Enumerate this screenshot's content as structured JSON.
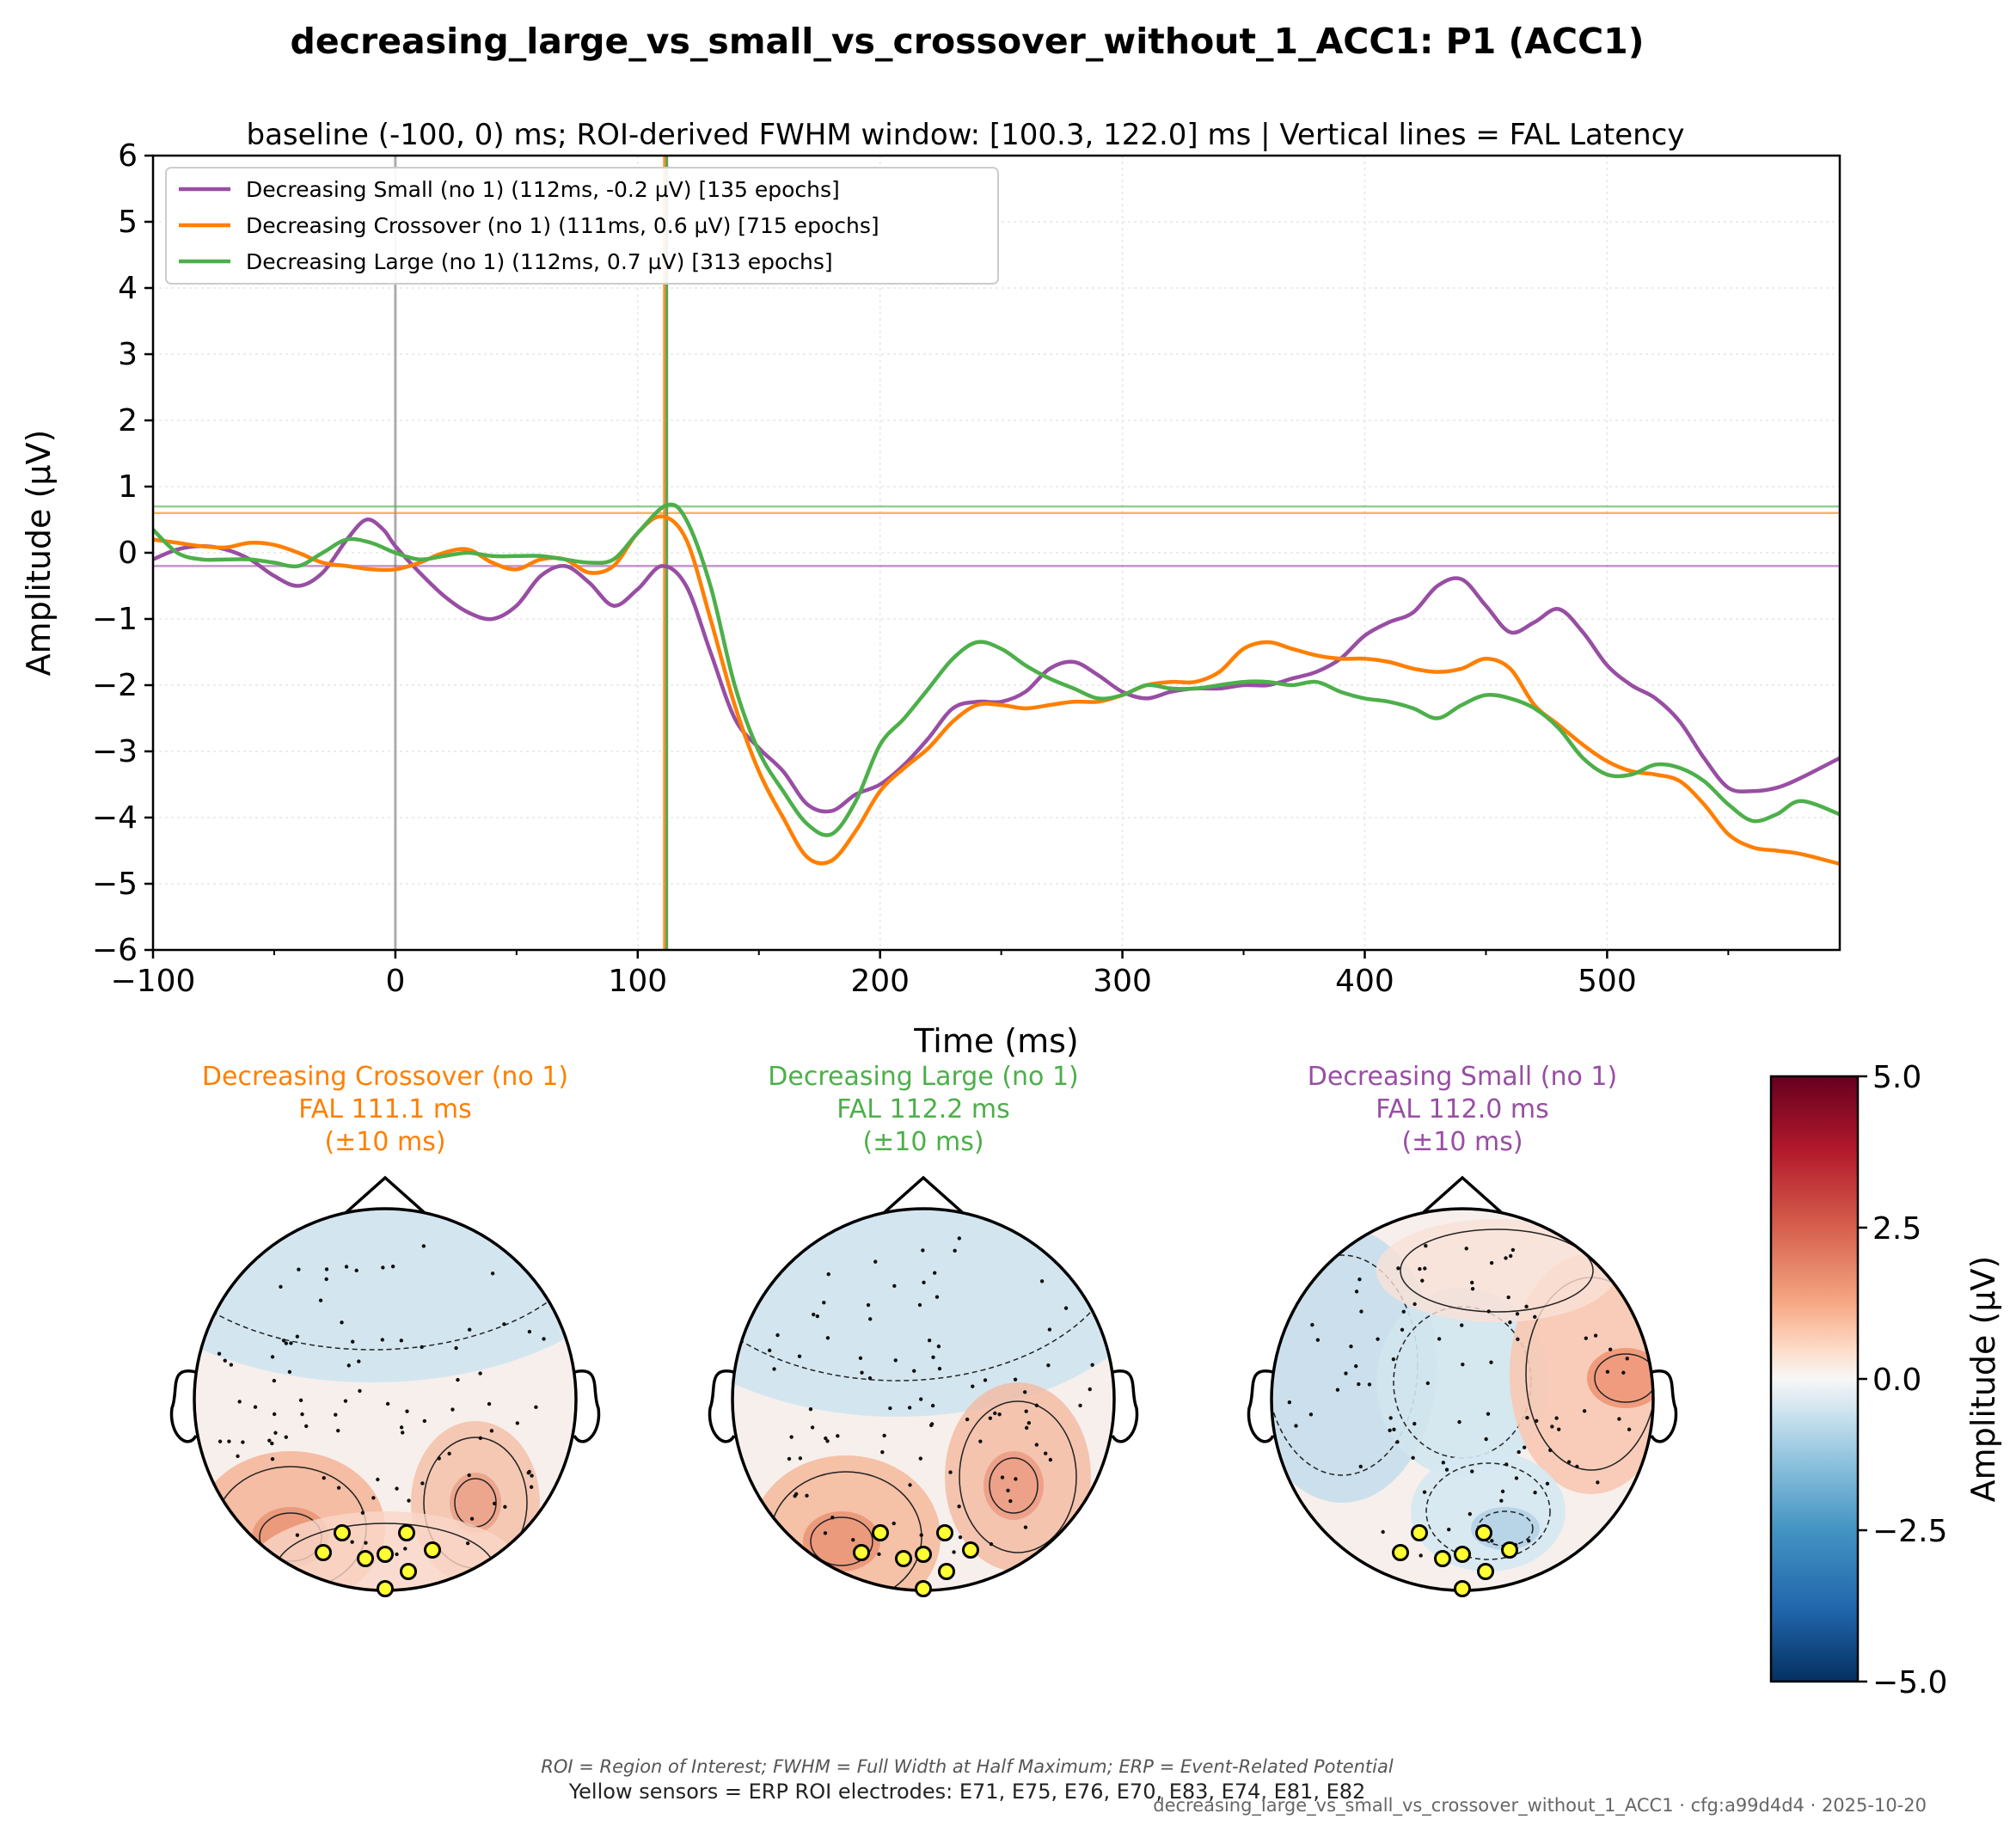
{
  "figure": {
    "title": "decreasing_large_vs_small_vs_crossover_without_1_ACC1: P1 (ACC1)",
    "subtitle": "baseline (-100, 0) ms; ROI-derived FWHM window: [100.3, 122.0] ms | Vertical lines = FAL Latency",
    "footer_abbrev": "ROI = Region of Interest; FWHM = Full Width at Half Maximum; ERP = Event-Related Potential",
    "footer_roi": "Yellow sensors = ERP ROI electrodes: E71, E75, E76, E70, E83, E74, E81, E82",
    "footer_id": "decreasing_large_vs_small_vs_crossover_without_1_ACC1 · cfg:a99d4d4 · 2025-10-20"
  },
  "chart_data": [
    {
      "type": "line",
      "xlabel": "Time (ms)",
      "ylabel": "Amplitude (µV)",
      "xlim": [
        -100,
        596
      ],
      "ylim": [
        -6,
        6
      ],
      "x_ticks": [
        -100,
        0,
        100,
        200,
        300,
        400,
        500
      ],
      "y_ticks": [
        -6,
        -5,
        -4,
        -3,
        -2,
        -1,
        0,
        1,
        2,
        3,
        4,
        5,
        6
      ],
      "grid": true,
      "legend_position": "upper-left",
      "reference_lines": {
        "onset_ms": 0,
        "fal_latency_ms": [
          112,
          111,
          112
        ],
        "peak_amplitude_uv": [
          -0.2,
          0.6,
          0.7
        ]
      },
      "series": [
        {
          "name": "Decreasing Small (no 1) (112ms, -0.2 µV) [135 epochs]",
          "color": "#984ea3",
          "fal_ms": 112,
          "peak_uv": -0.2,
          "points": [
            [
              -100,
              -0.1
            ],
            [
              -90,
              0.05
            ],
            [
              -80,
              0.1
            ],
            [
              -70,
              0.05
            ],
            [
              -60,
              -0.1
            ],
            [
              -50,
              -0.35
            ],
            [
              -40,
              -0.5
            ],
            [
              -30,
              -0.3
            ],
            [
              -20,
              0.2
            ],
            [
              -12,
              0.5
            ],
            [
              -5,
              0.35
            ],
            [
              0,
              0.1
            ],
            [
              10,
              -0.3
            ],
            [
              20,
              -0.65
            ],
            [
              30,
              -0.9
            ],
            [
              40,
              -1.0
            ],
            [
              50,
              -0.8
            ],
            [
              60,
              -0.35
            ],
            [
              70,
              -0.2
            ],
            [
              80,
              -0.45
            ],
            [
              90,
              -0.8
            ],
            [
              100,
              -0.55
            ],
            [
              110,
              -0.2
            ],
            [
              120,
              -0.5
            ],
            [
              130,
              -1.5
            ],
            [
              140,
              -2.5
            ],
            [
              150,
              -2.95
            ],
            [
              160,
              -3.3
            ],
            [
              170,
              -3.8
            ],
            [
              180,
              -3.9
            ],
            [
              190,
              -3.65
            ],
            [
              200,
              -3.5
            ],
            [
              210,
              -3.2
            ],
            [
              220,
              -2.8
            ],
            [
              230,
              -2.35
            ],
            [
              240,
              -2.25
            ],
            [
              250,
              -2.25
            ],
            [
              260,
              -2.1
            ],
            [
              270,
              -1.75
            ],
            [
              280,
              -1.65
            ],
            [
              290,
              -1.85
            ],
            [
              300,
              -2.1
            ],
            [
              310,
              -2.2
            ],
            [
              320,
              -2.1
            ],
            [
              330,
              -2.05
            ],
            [
              340,
              -2.05
            ],
            [
              350,
              -2.0
            ],
            [
              360,
              -2.0
            ],
            [
              370,
              -1.9
            ],
            [
              380,
              -1.8
            ],
            [
              390,
              -1.6
            ],
            [
              400,
              -1.25
            ],
            [
              410,
              -1.05
            ],
            [
              420,
              -0.9
            ],
            [
              430,
              -0.5
            ],
            [
              440,
              -0.4
            ],
            [
              450,
              -0.8
            ],
            [
              460,
              -1.2
            ],
            [
              470,
              -1.05
            ],
            [
              480,
              -0.85
            ],
            [
              490,
              -1.2
            ],
            [
              500,
              -1.7
            ],
            [
              510,
              -2.0
            ],
            [
              520,
              -2.2
            ],
            [
              530,
              -2.55
            ],
            [
              540,
              -3.1
            ],
            [
              550,
              -3.55
            ],
            [
              560,
              -3.6
            ],
            [
              570,
              -3.55
            ],
            [
              580,
              -3.4
            ],
            [
              596,
              -3.1
            ]
          ]
        },
        {
          "name": "Decreasing Crossover (no 1) (111ms, 0.6 µV) [715 epochs]",
          "color": "#ff7f00",
          "fal_ms": 111,
          "peak_uv": 0.6,
          "points": [
            [
              -100,
              0.2
            ],
            [
              -90,
              0.15
            ],
            [
              -80,
              0.1
            ],
            [
              -70,
              0.08
            ],
            [
              -60,
              0.15
            ],
            [
              -50,
              0.12
            ],
            [
              -40,
              0.0
            ],
            [
              -30,
              -0.15
            ],
            [
              -20,
              -0.2
            ],
            [
              -10,
              -0.25
            ],
            [
              0,
              -0.25
            ],
            [
              10,
              -0.15
            ],
            [
              20,
              0.0
            ],
            [
              30,
              0.05
            ],
            [
              40,
              -0.15
            ],
            [
              50,
              -0.25
            ],
            [
              60,
              -0.1
            ],
            [
              70,
              -0.1
            ],
            [
              80,
              -0.3
            ],
            [
              90,
              -0.2
            ],
            [
              100,
              0.3
            ],
            [
              110,
              0.55
            ],
            [
              120,
              0.2
            ],
            [
              130,
              -1.0
            ],
            [
              140,
              -2.3
            ],
            [
              150,
              -3.3
            ],
            [
              160,
              -4.0
            ],
            [
              170,
              -4.6
            ],
            [
              180,
              -4.65
            ],
            [
              190,
              -4.2
            ],
            [
              200,
              -3.6
            ],
            [
              210,
              -3.25
            ],
            [
              220,
              -2.95
            ],
            [
              230,
              -2.55
            ],
            [
              240,
              -2.3
            ],
            [
              250,
              -2.3
            ],
            [
              260,
              -2.35
            ],
            [
              270,
              -2.3
            ],
            [
              280,
              -2.25
            ],
            [
              290,
              -2.25
            ],
            [
              300,
              -2.15
            ],
            [
              310,
              -2.0
            ],
            [
              320,
              -1.95
            ],
            [
              330,
              -1.95
            ],
            [
              340,
              -1.8
            ],
            [
              350,
              -1.45
            ],
            [
              360,
              -1.35
            ],
            [
              370,
              -1.45
            ],
            [
              380,
              -1.55
            ],
            [
              390,
              -1.6
            ],
            [
              400,
              -1.6
            ],
            [
              410,
              -1.65
            ],
            [
              420,
              -1.75
            ],
            [
              430,
              -1.8
            ],
            [
              440,
              -1.75
            ],
            [
              450,
              -1.6
            ],
            [
              460,
              -1.75
            ],
            [
              470,
              -2.3
            ],
            [
              480,
              -2.6
            ],
            [
              490,
              -2.9
            ],
            [
              500,
              -3.15
            ],
            [
              510,
              -3.3
            ],
            [
              520,
              -3.35
            ],
            [
              530,
              -3.45
            ],
            [
              540,
              -3.8
            ],
            [
              550,
              -4.25
            ],
            [
              560,
              -4.45
            ],
            [
              570,
              -4.5
            ],
            [
              580,
              -4.55
            ],
            [
              596,
              -4.7
            ]
          ]
        },
        {
          "name": "Decreasing Large (no 1) (112ms, 0.7 µV) [313 epochs]",
          "color": "#4daf4a",
          "fal_ms": 112,
          "peak_uv": 0.7,
          "points": [
            [
              -100,
              0.35
            ],
            [
              -90,
              0.0
            ],
            [
              -80,
              -0.1
            ],
            [
              -70,
              -0.1
            ],
            [
              -60,
              -0.1
            ],
            [
              -50,
              -0.15
            ],
            [
              -40,
              -0.2
            ],
            [
              -30,
              0.0
            ],
            [
              -20,
              0.2
            ],
            [
              -10,
              0.15
            ],
            [
              0,
              0.0
            ],
            [
              10,
              -0.1
            ],
            [
              20,
              -0.05
            ],
            [
              30,
              0.0
            ],
            [
              40,
              -0.05
            ],
            [
              50,
              -0.05
            ],
            [
              60,
              -0.05
            ],
            [
              70,
              -0.1
            ],
            [
              80,
              -0.15
            ],
            [
              90,
              -0.1
            ],
            [
              100,
              0.3
            ],
            [
              112,
              0.72
            ],
            [
              120,
              0.5
            ],
            [
              130,
              -0.5
            ],
            [
              140,
              -2.0
            ],
            [
              150,
              -3.0
            ],
            [
              160,
              -3.6
            ],
            [
              170,
              -4.1
            ],
            [
              180,
              -4.25
            ],
            [
              190,
              -3.75
            ],
            [
              200,
              -2.9
            ],
            [
              210,
              -2.5
            ],
            [
              220,
              -2.05
            ],
            [
              230,
              -1.6
            ],
            [
              240,
              -1.35
            ],
            [
              250,
              -1.45
            ],
            [
              260,
              -1.7
            ],
            [
              270,
              -1.9
            ],
            [
              280,
              -2.05
            ],
            [
              290,
              -2.2
            ],
            [
              300,
              -2.15
            ],
            [
              310,
              -2.0
            ],
            [
              320,
              -2.05
            ],
            [
              330,
              -2.05
            ],
            [
              340,
              -2.0
            ],
            [
              350,
              -1.95
            ],
            [
              360,
              -1.95
            ],
            [
              370,
              -2.0
            ],
            [
              380,
              -1.95
            ],
            [
              390,
              -2.1
            ],
            [
              400,
              -2.2
            ],
            [
              410,
              -2.25
            ],
            [
              420,
              -2.35
            ],
            [
              430,
              -2.5
            ],
            [
              440,
              -2.3
            ],
            [
              450,
              -2.15
            ],
            [
              460,
              -2.2
            ],
            [
              470,
              -2.35
            ],
            [
              480,
              -2.65
            ],
            [
              490,
              -3.1
            ],
            [
              500,
              -3.35
            ],
            [
              510,
              -3.35
            ],
            [
              520,
              -3.2
            ],
            [
              530,
              -3.25
            ],
            [
              540,
              -3.45
            ],
            [
              550,
              -3.8
            ],
            [
              560,
              -4.05
            ],
            [
              570,
              -3.95
            ],
            [
              580,
              -3.75
            ],
            [
              596,
              -3.95
            ]
          ]
        }
      ]
    },
    {
      "type": "heatmap",
      "description_kind": "topomap",
      "panels": [
        {
          "title": "Decreasing Crossover (no 1)",
          "fal_label": "FAL 111.1 ms",
          "window_label": "(±10 ms)",
          "color": "#ff7f00",
          "pattern": "crossover"
        },
        {
          "title": "Decreasing Large (no 1)",
          "fal_label": "FAL 112.2 ms",
          "window_label": "(±10 ms)",
          "color": "#4daf4a",
          "pattern": "large"
        },
        {
          "title": "Decreasing Small (no 1)",
          "fal_label": "FAL 112.0 ms",
          "window_label": "(±10 ms)",
          "color": "#984ea3",
          "pattern": "small"
        }
      ],
      "colorbar": {
        "label": "Amplitude (µV)",
        "ticks": [
          "5.0",
          "2.5",
          "0.0",
          "−2.5",
          "−5.0"
        ],
        "range": [
          -5,
          5
        ],
        "colormap": "RdBu_r"
      },
      "roi_electrodes": [
        "E71",
        "E75",
        "E76",
        "E70",
        "E83",
        "E74",
        "E81",
        "E82"
      ]
    }
  ]
}
